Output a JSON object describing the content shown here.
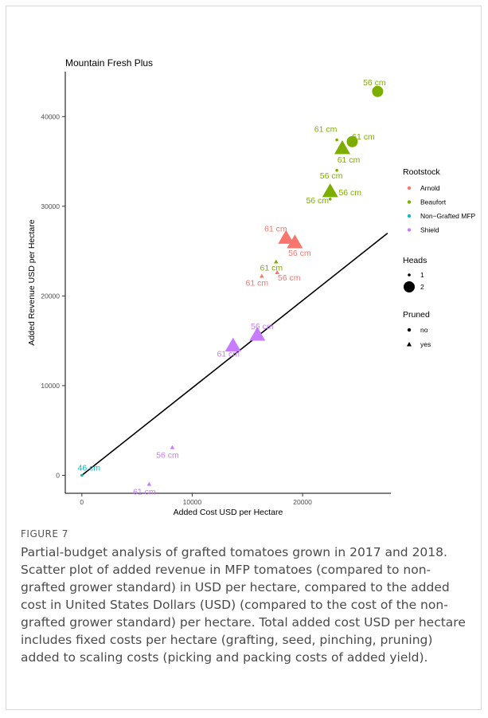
{
  "figure": {
    "label": "FIGURE 7",
    "caption": "Partial-budget analysis of grafted tomatoes grown in 2017 and 2018. Scatter plot of added revenue in MFP tomatoes (compared to non-grafted grower standard) in USD per hectare, compared to the added cost in United States Dollars (USD) (compared to the cost of the non-grafted grower standard) per hectare. Total added cost USD per hectare includes fixed costs per hectare (grafting, seed, pinching, pruning) added to scaling costs (picking and packing costs of added yield)."
  },
  "chart_data": {
    "type": "scatter",
    "title": "Mountain Fresh Plus",
    "xlabel": "Added Cost USD per Hectare",
    "ylabel": "Added Revenue USD per Hectare",
    "xlim": [
      -1500,
      28000
    ],
    "ylim": [
      -2000,
      45000
    ],
    "xticks": [
      0,
      10000,
      20000
    ],
    "yticks": [
      0,
      10000,
      20000,
      30000,
      40000
    ],
    "grid": false,
    "reference_line": {
      "x": [
        0,
        27700
      ],
      "y": [
        0,
        27000
      ]
    },
    "colors": {
      "Arnold": "#f8766d",
      "Beaufort": "#7cae00",
      "Non-Grafted MFP": "#00bfc4",
      "Shield": "#c77cff"
    },
    "legend": {
      "position": "right",
      "rootstock_title": "Rootstock",
      "rootstock_items": [
        "Arnold",
        "Beaufort",
        "Non−Grafted MFP",
        "Shield"
      ],
      "heads_title": "Heads",
      "heads_items": [
        "1",
        "2"
      ],
      "pruned_title": "Pruned",
      "pruned_items": [
        "no",
        "yes"
      ]
    },
    "points": [
      {
        "rootstock": "Beaufort",
        "heads": 2,
        "pruned": "no",
        "x": 26800,
        "y": 42800,
        "label": "56 cm"
      },
      {
        "rootstock": "Beaufort",
        "heads": 2,
        "pruned": "no",
        "x": 24500,
        "y": 37200,
        "label": "61 cm"
      },
      {
        "rootstock": "Beaufort",
        "heads": 2,
        "pruned": "yes",
        "x": 23600,
        "y": 36400,
        "label": "61 cm"
      },
      {
        "rootstock": "Beaufort",
        "heads": 1,
        "pruned": "no",
        "x": 23100,
        "y": 37400,
        "label": "61 cm"
      },
      {
        "rootstock": "Beaufort",
        "heads": 1,
        "pruned": "no",
        "x": 23100,
        "y": 34000,
        "label": "56 cm"
      },
      {
        "rootstock": "Beaufort",
        "heads": 2,
        "pruned": "yes",
        "x": 22500,
        "y": 31600,
        "label": "56 cm"
      },
      {
        "rootstock": "Beaufort",
        "heads": 1,
        "pruned": "no",
        "x": 22500,
        "y": 30800,
        "label": "56 cm"
      },
      {
        "rootstock": "Beaufort",
        "heads": 1,
        "pruned": "yes",
        "x": 17600,
        "y": 23800,
        "label": "61 cm"
      },
      {
        "rootstock": "Arnold",
        "heads": 2,
        "pruned": "yes",
        "x": 18500,
        "y": 26400,
        "label": "61 cm"
      },
      {
        "rootstock": "Arnold",
        "heads": 2,
        "pruned": "yes",
        "x": 19300,
        "y": 25900,
        "label": "56 cm"
      },
      {
        "rootstock": "Arnold",
        "heads": 1,
        "pruned": "yes",
        "x": 16300,
        "y": 22200,
        "label": "61 cm"
      },
      {
        "rootstock": "Arnold",
        "heads": 1,
        "pruned": "yes",
        "x": 17700,
        "y": 22600,
        "label": "56 cm"
      },
      {
        "rootstock": "Shield",
        "heads": 2,
        "pruned": "yes",
        "x": 13700,
        "y": 14400,
        "label": "61 cm"
      },
      {
        "rootstock": "Shield",
        "heads": 2,
        "pruned": "yes",
        "x": 15900,
        "y": 15600,
        "label": "56 cm"
      },
      {
        "rootstock": "Shield",
        "heads": 1,
        "pruned": "yes",
        "x": 8200,
        "y": 3100,
        "label": "56 cm"
      },
      {
        "rootstock": "Shield",
        "heads": 1,
        "pruned": "yes",
        "x": 6100,
        "y": -1000,
        "label": "61 cm"
      },
      {
        "rootstock": "Non-Grafted MFP",
        "heads": 1,
        "pruned": "no",
        "x": 0,
        "y": 0,
        "label": "46 cm"
      }
    ]
  }
}
